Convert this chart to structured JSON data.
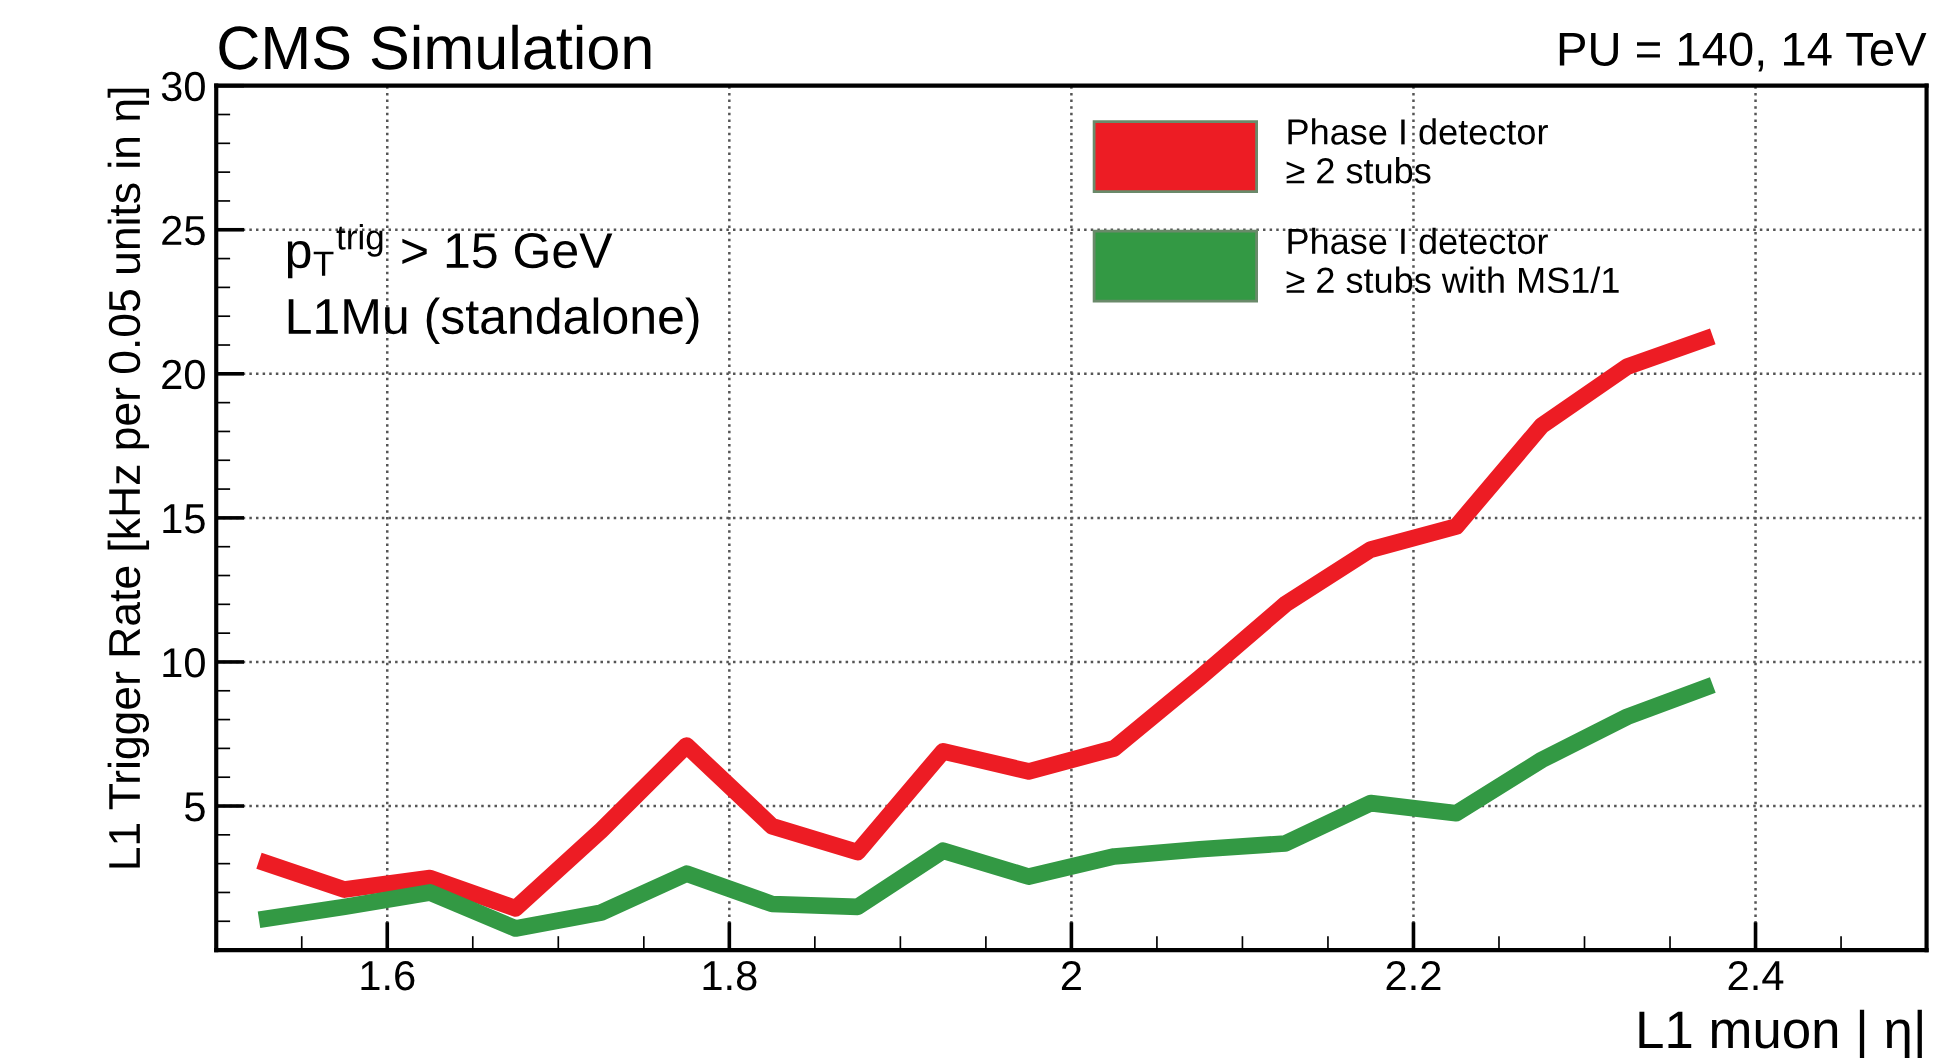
{
  "chart_data": {
    "type": "line",
    "title": "CMS Simulation",
    "xlabel": "L1 muon | η|",
    "ylabel": "L1 Trigger Rate [kHz per 0.05 units in η]",
    "annotations": [
      "PU = 140, 14 TeV",
      "p$_{T}$$^{trig}$ > 15 GeV",
      "L1Mu (standalone)"
    ],
    "x": [
      1.525,
      1.575,
      1.625,
      1.675,
      1.725,
      1.775,
      1.825,
      1.875,
      1.925,
      1.975,
      2.025,
      2.075,
      2.125,
      2.175,
      2.225,
      2.275,
      2.325,
      2.375
    ],
    "series": [
      {
        "name": "Phase I detector\n≥ 2 stubs",
        "color": "#ed1c24",
        "values": [
          3.1,
          2.1,
          2.5,
          1.45,
          4.15,
          7.1,
          4.3,
          3.4,
          6.9,
          6.2,
          7.0,
          9.45,
          12.0,
          13.9,
          14.7,
          18.2,
          20.25,
          21.3
        ]
      },
      {
        "name": "Phase I detector\n≥ 2 stubs with MS1/1",
        "color": "#339944",
        "values": [
          1.05,
          1.5,
          2.0,
          0.75,
          1.3,
          2.65,
          1.6,
          1.5,
          3.45,
          2.55,
          3.25,
          3.5,
          3.7,
          5.1,
          4.75,
          6.6,
          8.1,
          9.2
        ]
      }
    ],
    "xlim": [
      1.5,
      2.5
    ],
    "xticks": [
      1.6,
      1.8,
      2,
      2.2,
      2.4
    ],
    "ylim": [
      0,
      30
    ],
    "yticks": [
      5,
      10,
      15,
      20,
      25,
      30
    ],
    "grid": true,
    "legend": "top right",
    "marker": "none",
    "line_style": "solid"
  }
}
